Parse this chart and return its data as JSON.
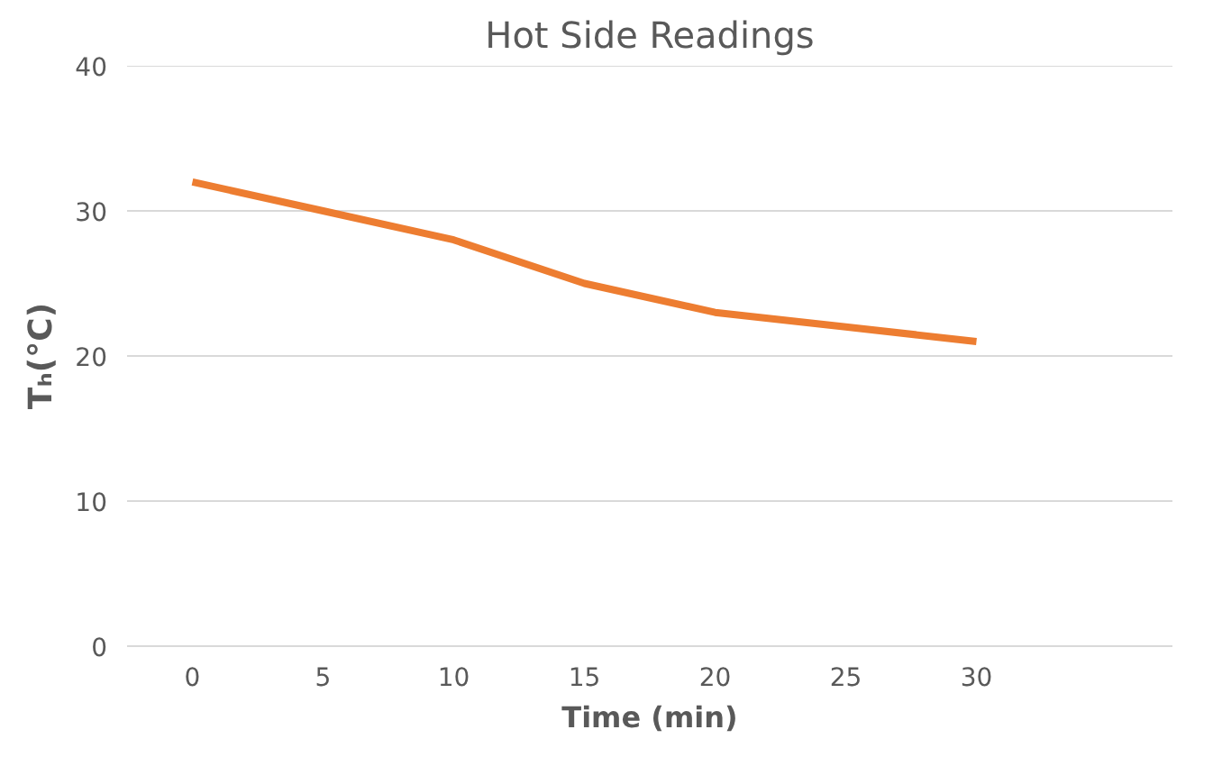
{
  "chart_data": {
    "type": "line",
    "title": "Hot Side Readings",
    "xlabel": "Time (min)",
    "ylabel": "Tₕ(°C)",
    "x": [
      0,
      5,
      10,
      15,
      20,
      25,
      30
    ],
    "series": [
      {
        "color": "#ed7d31",
        "values": [
          32,
          30,
          28,
          25,
          23,
          22,
          21
        ]
      }
    ],
    "xlim": [
      -2.5,
      37.5
    ],
    "xticks": [
      0,
      5,
      10,
      15,
      20,
      25,
      30
    ],
    "ylim": [
      0,
      40
    ],
    "yticks": [
      0,
      10,
      20,
      30,
      40
    ],
    "grid": "y",
    "marker": "none",
    "line_style": "solid"
  }
}
